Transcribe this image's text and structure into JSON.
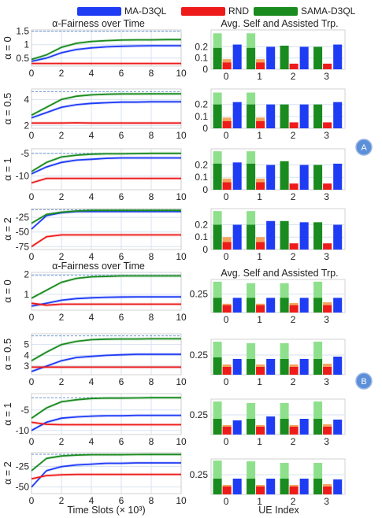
{
  "colors": {
    "ma_d3ql": "#1f3cf5",
    "rnd": "#ee1b1b",
    "sama_d3ql": "#1a8b1f",
    "sama_self": "#8fe08c",
    "rnd_self": "#f4a55e",
    "grid": "#d7e2f0",
    "reference": "#5a86c8",
    "badge": "#5b8fd8"
  },
  "legend": [
    {
      "name": "MA-D3QL",
      "color": "#1f3cf5"
    },
    {
      "name": "RND",
      "color": "#ee1b1b"
    },
    {
      "name": "SAMA-D3QL",
      "color": "#1a8b1f"
    }
  ],
  "panel_labels": [
    "A",
    "B"
  ],
  "common": {
    "xlabel": "Time Slots (× 10³)",
    "xlabel_ues": "UE Index"
  },
  "chart_data": [
    {
      "type": "line",
      "group": "A",
      "title": "α-Fairness over Time",
      "ylabel": "α = 0",
      "x": [
        0,
        1,
        2,
        3,
        4,
        5,
        6,
        7,
        8,
        9,
        10
      ],
      "xticks": [
        0,
        2,
        4,
        6,
        8,
        10
      ],
      "ylim": [
        0.2,
        1.55
      ],
      "yticks": [
        0.5,
        1.0,
        1.5
      ],
      "yticklabels": [
        "0.5",
        "1",
        "1.5"
      ],
      "reference_line": 1.5,
      "series": [
        {
          "name": "MA-D3QL",
          "values": [
            0.38,
            0.5,
            0.7,
            0.82,
            0.88,
            0.92,
            0.94,
            0.95,
            0.96,
            0.96,
            0.96
          ]
        },
        {
          "name": "RND",
          "values": [
            0.3,
            0.3,
            0.3,
            0.3,
            0.3,
            0.3,
            0.3,
            0.3,
            0.3,
            0.3,
            0.3
          ]
        },
        {
          "name": "SAMA-D3QL",
          "values": [
            0.45,
            0.62,
            0.9,
            1.05,
            1.12,
            1.15,
            1.17,
            1.18,
            1.18,
            1.19,
            1.19
          ]
        }
      ]
    },
    {
      "type": "line",
      "group": "A",
      "title": "",
      "ylabel": "α = 0.5",
      "x": [
        0,
        1,
        2,
        3,
        4,
        5,
        6,
        7,
        8,
        9,
        10
      ],
      "xticks": [
        0,
        2,
        4,
        6,
        8,
        10
      ],
      "ylim": [
        1.8,
        4.8
      ],
      "yticks": [
        2,
        4
      ],
      "yticklabels": [
        "2",
        "4"
      ],
      "reference_line": 4.6,
      "series": [
        {
          "name": "MA-D3QL",
          "values": [
            2.6,
            3.0,
            3.4,
            3.6,
            3.7,
            3.75,
            3.8,
            3.8,
            3.82,
            3.82,
            3.82
          ]
        },
        {
          "name": "RND",
          "values": [
            2.2,
            2.2,
            2.2,
            2.22,
            2.2,
            2.2,
            2.2,
            2.2,
            2.2,
            2.2,
            2.2
          ]
        },
        {
          "name": "SAMA-D3QL",
          "values": [
            2.8,
            3.4,
            4.0,
            4.25,
            4.35,
            4.4,
            4.42,
            4.42,
            4.43,
            4.43,
            4.43
          ]
        }
      ]
    },
    {
      "type": "line",
      "group": "A",
      "title": "",
      "ylabel": "α = 1",
      "x": [
        0,
        1,
        2,
        3,
        4,
        5,
        6,
        7,
        8,
        9,
        10
      ],
      "xticks": [
        0,
        2,
        4,
        6,
        8,
        10
      ],
      "ylim": [
        -13,
        -4
      ],
      "yticks": [
        -5,
        -10
      ],
      "yticklabels": [
        "-5",
        "-10"
      ],
      "reference_line": -5,
      "series": [
        {
          "name": "MA-D3QL",
          "values": [
            -9.5,
            -8.0,
            -7.0,
            -6.5,
            -6.3,
            -6.1,
            -6.0,
            -6.0,
            -6.0,
            -6.0,
            -6.0
          ]
        },
        {
          "name": "RND",
          "values": [
            -11.5,
            -10.5,
            -10.5,
            -10.5,
            -10.5,
            -10.5,
            -10.5,
            -10.5,
            -10.5,
            -10.5,
            -10.5
          ]
        },
        {
          "name": "SAMA-D3QL",
          "values": [
            -9.0,
            -7.0,
            -5.8,
            -5.4,
            -5.2,
            -5.1,
            -5.1,
            -5.05,
            -5.0,
            -5.0,
            -5.0
          ]
        }
      ]
    },
    {
      "type": "line",
      "group": "A",
      "title": "",
      "ylabel": "α = 2",
      "x": [
        0,
        1,
        2,
        3,
        4,
        5,
        6,
        7,
        8,
        9,
        10
      ],
      "xticks": [
        0,
        2,
        4,
        6,
        8,
        10
      ],
      "ylim": [
        -80,
        -10
      ],
      "yticks": [
        -25,
        -50,
        -75
      ],
      "yticklabels": [
        "-25",
        "-50",
        "-75"
      ],
      "reference_line": -12,
      "series": [
        {
          "name": "MA-D3QL",
          "values": [
            -45,
            -22,
            -17,
            -15,
            -15,
            -15,
            -15,
            -15,
            -15,
            -15,
            -15
          ]
        },
        {
          "name": "RND",
          "values": [
            -75,
            -58,
            -55,
            -55,
            -55,
            -55,
            -55,
            -55,
            -55,
            -55,
            -55
          ]
        },
        {
          "name": "SAMA-D3QL",
          "values": [
            -35,
            -20,
            -16,
            -14,
            -13,
            -13,
            -13,
            -13,
            -13,
            -13,
            -13
          ]
        }
      ]
    },
    {
      "type": "line",
      "group": "B",
      "title": "α-Fairness over Time",
      "ylabel": "α = 0",
      "x": [
        0,
        1,
        2,
        3,
        4,
        5,
        6,
        7,
        8,
        9,
        10
      ],
      "xticks": [
        0,
        2,
        4,
        6,
        8,
        10
      ],
      "ylim": [
        0.2,
        2.1
      ],
      "yticks": [
        1,
        2
      ],
      "yticklabels": [
        "1",
        "2"
      ],
      "reference_line": 1.95,
      "series": [
        {
          "name": "MA-D3QL",
          "values": [
            0.4,
            0.55,
            0.7,
            0.78,
            0.82,
            0.85,
            0.86,
            0.87,
            0.87,
            0.87,
            0.87
          ]
        },
        {
          "name": "RND",
          "values": [
            0.55,
            0.45,
            0.5,
            0.5,
            0.5,
            0.5,
            0.5,
            0.5,
            0.5,
            0.5,
            0.5
          ]
        },
        {
          "name": "SAMA-D3QL",
          "values": [
            0.8,
            1.2,
            1.6,
            1.8,
            1.88,
            1.9,
            1.92,
            1.92,
            1.92,
            1.92,
            1.92
          ]
        }
      ]
    },
    {
      "type": "line",
      "group": "B",
      "title": "",
      "ylabel": "α = 0.5",
      "x": [
        0,
        1,
        2,
        3,
        4,
        5,
        6,
        7,
        8,
        9,
        10
      ],
      "xticks": [
        0,
        2,
        4,
        6,
        8,
        10
      ],
      "ylim": [
        2.2,
        6.0
      ],
      "yticks": [
        3,
        4,
        5
      ],
      "yticklabels": [
        "3",
        "4",
        "5"
      ],
      "reference_line": 5.8,
      "series": [
        {
          "name": "MA-D3QL",
          "values": [
            2.5,
            3.0,
            3.5,
            3.8,
            3.9,
            4.0,
            4.05,
            4.1,
            4.1,
            4.1,
            4.1
          ]
        },
        {
          "name": "RND",
          "values": [
            2.9,
            2.9,
            2.9,
            2.9,
            2.9,
            2.9,
            2.9,
            2.9,
            2.9,
            2.9,
            2.9
          ]
        },
        {
          "name": "SAMA-D3QL",
          "values": [
            3.5,
            4.3,
            5.0,
            5.3,
            5.45,
            5.5,
            5.52,
            5.52,
            5.53,
            5.53,
            5.53
          ]
        }
      ]
    },
    {
      "type": "line",
      "group": "B",
      "title": "",
      "ylabel": "α = 1",
      "x": [
        0,
        1,
        2,
        3,
        4,
        5,
        6,
        7,
        8,
        9,
        10
      ],
      "xticks": [
        0,
        2,
        4,
        6,
        8,
        10
      ],
      "ylim": [
        -11,
        -1
      ],
      "yticks": [
        -5,
        -10
      ],
      "yticklabels": [
        "-5",
        "-10"
      ],
      "reference_line": -2,
      "series": [
        {
          "name": "MA-D3QL",
          "values": [
            -10,
            -8,
            -7,
            -6.7,
            -6.5,
            -6.4,
            -6.4,
            -6.3,
            -6.3,
            -6.3,
            -6.3
          ]
        },
        {
          "name": "RND",
          "values": [
            -8.0,
            -8.5,
            -8.6,
            -8.6,
            -8.6,
            -8.6,
            -8.6,
            -8.6,
            -8.6,
            -8.6,
            -8.6
          ]
        },
        {
          "name": "SAMA-D3QL",
          "values": [
            -7,
            -4.5,
            -3.0,
            -2.5,
            -2.2,
            -2.1,
            -2.1,
            -2.05,
            -2.0,
            -2.0,
            -2.0
          ]
        }
      ]
    },
    {
      "type": "line",
      "group": "B",
      "title": "",
      "ylabel": "α = 2",
      "x": [
        0,
        1,
        2,
        3,
        4,
        5,
        6,
        7,
        8,
        9,
        10
      ],
      "xticks": [
        0,
        2,
        4,
        6,
        8,
        10
      ],
      "ylim": [
        -58,
        -8
      ],
      "yticks": [
        -25,
        -50
      ],
      "yticklabels": [
        "-25",
        "-50"
      ],
      "reference_line": -10,
      "series": [
        {
          "name": "MA-D3QL",
          "values": [
            -50,
            -30,
            -25,
            -23,
            -22,
            -21,
            -21,
            -20.5,
            -20.5,
            -20.5,
            -20.5
          ]
        },
        {
          "name": "RND",
          "values": [
            -40,
            -36,
            -35,
            -34.5,
            -34.5,
            -34.5,
            -34.5,
            -34.5,
            -34.5,
            -34.5,
            -34.5
          ]
        },
        {
          "name": "SAMA-D3QL",
          "values": [
            -30,
            -15,
            -12,
            -11,
            -10.5,
            -10.5,
            -10.5,
            -10.3,
            -10.2,
            -10.2,
            -10.2
          ]
        }
      ]
    },
    {
      "type": "bar",
      "group": "A",
      "title": "Avg. Self and Assisted Trp.",
      "categories": [
        "0",
        "1",
        "2",
        "3"
      ],
      "ylim": [
        0,
        0.35
      ],
      "yticks": [
        0,
        0.1,
        0.2
      ],
      "yticklabels": [
        "0",
        "0.1",
        "0.2"
      ],
      "series": [
        {
          "name": "SAMA-D3QL",
          "values": [
            0.19,
            0.19,
            0.21,
            0.2
          ],
          "self_values": [
            0.32,
            0.32,
            0.21,
            0.2
          ]
        },
        {
          "name": "RND",
          "values": [
            0.06,
            0.06,
            0.05,
            0.05
          ],
          "self_values": [
            0.09,
            0.09,
            0.05,
            0.05
          ]
        },
        {
          "name": "MA-D3QL",
          "values": [
            0.22,
            0.2,
            0.2,
            0.22
          ]
        }
      ]
    },
    {
      "type": "bar",
      "group": "A",
      "title": "",
      "categories": [
        "0",
        "1",
        "2",
        "3"
      ],
      "ylim": [
        0,
        0.33
      ],
      "yticks": [
        0,
        0.1,
        0.2
      ],
      "yticklabels": [
        "0",
        "0.1",
        "0.2"
      ],
      "series": [
        {
          "name": "SAMA-D3QL",
          "values": [
            0.2,
            0.2,
            0.2,
            0.2
          ],
          "self_values": [
            0.3,
            0.3,
            0.2,
            0.2
          ]
        },
        {
          "name": "RND",
          "values": [
            0.06,
            0.06,
            0.05,
            0.05
          ],
          "self_values": [
            0.09,
            0.09,
            0.05,
            0.05
          ]
        },
        {
          "name": "MA-D3QL",
          "values": [
            0.22,
            0.2,
            0.2,
            0.22
          ]
        }
      ]
    },
    {
      "type": "bar",
      "group": "A",
      "title": "",
      "categories": [
        "0",
        "1",
        "2",
        "3"
      ],
      "ylim": [
        0,
        0.33
      ],
      "yticks": [
        0,
        0.1,
        0.2
      ],
      "yticklabels": [
        "0",
        "0.1",
        "0.2"
      ],
      "series": [
        {
          "name": "SAMA-D3QL",
          "values": [
            0.21,
            0.21,
            0.23,
            0.2
          ],
          "self_values": [
            0.31,
            0.31,
            0.23,
            0.2
          ]
        },
        {
          "name": "RND",
          "values": [
            0.06,
            0.06,
            0.05,
            0.05
          ],
          "self_values": [
            0.09,
            0.09,
            0.05,
            0.05
          ]
        },
        {
          "name": "MA-D3QL",
          "values": [
            0.22,
            0.2,
            0.2,
            0.21
          ]
        }
      ]
    },
    {
      "type": "bar",
      "group": "A",
      "title": "",
      "categories": [
        "0",
        "1",
        "2",
        "3"
      ],
      "ylim": [
        0,
        0.33
      ],
      "yticks": [
        0,
        0.1,
        0.2
      ],
      "yticklabels": [
        "0",
        "0.1",
        "0.2"
      ],
      "series": [
        {
          "name": "SAMA-D3QL",
          "values": [
            0.2,
            0.2,
            0.23,
            0.22
          ],
          "self_values": [
            0.31,
            0.31,
            0.23,
            0.22
          ]
        },
        {
          "name": "RND",
          "values": [
            0.06,
            0.06,
            0.05,
            0.05
          ],
          "self_values": [
            0.1,
            0.1,
            0.05,
            0.05
          ]
        },
        {
          "name": "MA-D3QL",
          "values": [
            0.2,
            0.23,
            0.22,
            0.2
          ]
        }
      ]
    },
    {
      "type": "bar",
      "group": "B",
      "title": "Avg. Self and Assisted Trp.",
      "categories": [
        "0",
        "1",
        "2",
        "3"
      ],
      "ylim": [
        0,
        0.45
      ],
      "yticks": [
        0.25
      ],
      "yticklabels": [
        "0.25"
      ],
      "series": [
        {
          "name": "SAMA-D3QL",
          "values": [
            0.2,
            0.2,
            0.2,
            0.2
          ],
          "self_values": [
            0.42,
            0.4,
            0.4,
            0.42
          ]
        },
        {
          "name": "RND",
          "values": [
            0.1,
            0.1,
            0.1,
            0.1
          ],
          "self_values": [
            0.12,
            0.12,
            0.13,
            0.14
          ]
        },
        {
          "name": "MA-D3QL",
          "values": [
            0.2,
            0.2,
            0.2,
            0.2
          ]
        }
      ]
    },
    {
      "type": "bar",
      "group": "B",
      "title": "",
      "categories": [
        "0",
        "1",
        "2",
        "3"
      ],
      "ylim": [
        0,
        0.45
      ],
      "yticks": [
        0.25
      ],
      "yticklabels": [
        "0.25"
      ],
      "series": [
        {
          "name": "SAMA-D3QL",
          "values": [
            0.22,
            0.2,
            0.2,
            0.2
          ],
          "self_values": [
            0.42,
            0.4,
            0.4,
            0.42
          ]
        },
        {
          "name": "RND",
          "values": [
            0.1,
            0.1,
            0.1,
            0.1
          ],
          "self_values": [
            0.13,
            0.13,
            0.13,
            0.14
          ]
        },
        {
          "name": "MA-D3QL",
          "values": [
            0.2,
            0.2,
            0.2,
            0.23
          ]
        }
      ]
    },
    {
      "type": "bar",
      "group": "B",
      "title": "",
      "categories": [
        "0",
        "1",
        "2",
        "3"
      ],
      "ylim": [
        0,
        0.45
      ],
      "yticks": [
        0.25
      ],
      "yticklabels": [
        "0.25"
      ],
      "series": [
        {
          "name": "SAMA-D3QL",
          "values": [
            0.2,
            0.2,
            0.2,
            0.2
          ],
          "self_values": [
            0.42,
            0.4,
            0.4,
            0.42
          ]
        },
        {
          "name": "RND",
          "values": [
            0.1,
            0.1,
            0.1,
            0.1
          ],
          "self_values": [
            0.12,
            0.12,
            0.12,
            0.13
          ]
        },
        {
          "name": "MA-D3QL",
          "values": [
            0.18,
            0.23,
            0.2,
            0.19
          ]
        }
      ]
    },
    {
      "type": "bar",
      "group": "B",
      "title": "",
      "categories": [
        "0",
        "1",
        "2",
        "3"
      ],
      "ylim": [
        0,
        0.45
      ],
      "yticks": [
        0.25
      ],
      "yticklabels": [
        "0.25"
      ],
      "series": [
        {
          "name": "SAMA-D3QL",
          "values": [
            0.2,
            0.2,
            0.2,
            0.2
          ],
          "self_values": [
            0.43,
            0.42,
            0.4,
            0.4
          ]
        },
        {
          "name": "RND",
          "values": [
            0.1,
            0.1,
            0.1,
            0.1
          ],
          "self_values": [
            0.12,
            0.12,
            0.12,
            0.13
          ]
        },
        {
          "name": "MA-D3QL",
          "values": [
            0.2,
            0.2,
            0.2,
            0.19
          ]
        }
      ]
    }
  ]
}
